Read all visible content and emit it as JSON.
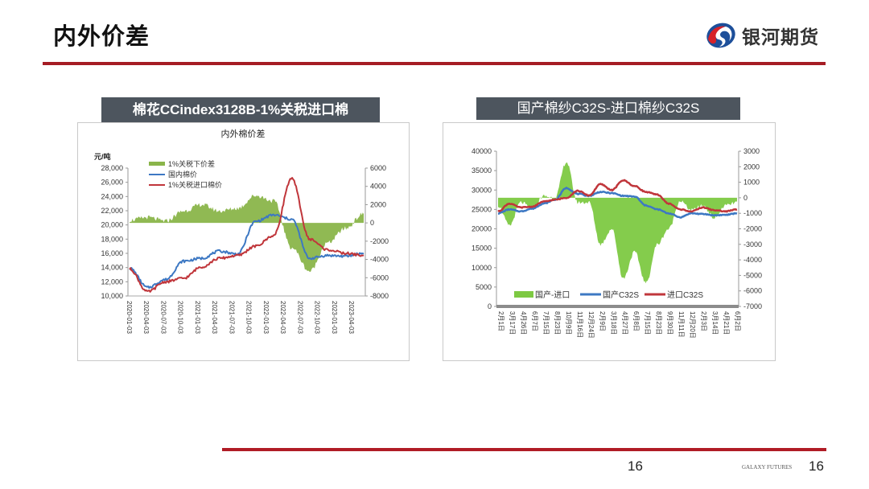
{
  "page": {
    "title": "内外价差",
    "logo_text": "银河期货",
    "page_number": "16",
    "footer_brand": "GALAXY FUTURES",
    "footer_page_number": "16",
    "accent_color": "#a51c24"
  },
  "left_chart": {
    "header": "棉花CCindex3128B-1%关税进口棉",
    "title": "内外棉价差",
    "y_left_unit": "元/吨",
    "y_left_ticks": [
      "28,000",
      "26,000",
      "24,000",
      "22,000",
      "20,000",
      "18,000",
      "16,000",
      "14,000",
      "12,000",
      "10,000"
    ],
    "y_right_ticks": [
      "6000",
      "4000",
      "2000",
      "0",
      "-2000",
      "-4000",
      "-6000",
      "-8000"
    ],
    "x_ticks": [
      "2020-01-03",
      "2020-04-03",
      "2020-07-03",
      "2020-10-03",
      "2021-01-03",
      "2021-04-03",
      "2021-07-03",
      "2021-10-03",
      "2022-01-03",
      "2022-04-03",
      "2022-07-03",
      "2022-10-03",
      "2023-01-03",
      "2023-04-03"
    ],
    "legend": [
      "1%关税下价差",
      "国内棉价",
      "1%关税进口棉价"
    ]
  },
  "right_chart": {
    "header": "国产棉纱C32S-进口棉纱C32S",
    "y_left_ticks": [
      "40000",
      "35000",
      "30000",
      "25000",
      "20000",
      "15000",
      "10000",
      "5000",
      "0"
    ],
    "y_right_ticks": [
      "3000",
      "2000",
      "1000",
      "0",
      "-1000",
      "-2000",
      "-3000",
      "-4000",
      "-5000",
      "-6000",
      "-7000"
    ],
    "x_ticks": [
      "2月1日",
      "3月17日",
      "4月26日",
      "6月7日",
      "7月15日",
      "8月23日",
      "10月9日",
      "11月16日",
      "12月24日",
      "2月9日",
      "3月18日",
      "4月27日",
      "6月8日",
      "7月15日",
      "8月23日",
      "9月30日",
      "11月11日",
      "12月20日",
      "2月3日",
      "3月14日",
      "4月21日",
      "6月2日"
    ],
    "legend": [
      "国产-进口",
      "国产C32S",
      "进口C32S"
    ]
  },
  "chart_data": [
    {
      "type": "line",
      "title": "内外棉价差",
      "xlabel": "",
      "ylabel": "元/吨",
      "ylim": [
        10000,
        28000
      ],
      "y2lim": [
        -8000,
        6000
      ],
      "x": [
        "2020-01-03",
        "2020-04-03",
        "2020-07-03",
        "2020-10-03",
        "2021-01-03",
        "2021-04-03",
        "2021-07-03",
        "2021-10-03",
        "2022-01-03",
        "2022-04-03",
        "2022-07-03",
        "2022-10-03",
        "2023-01-03",
        "2023-04-03"
      ],
      "series": [
        {
          "name": "国内棉价",
          "axis": "left",
          "color": "#3d78c3",
          "values": [
            13900,
            11200,
            12300,
            14900,
            15300,
            16300,
            15900,
            20500,
            21400,
            20800,
            15300,
            15700,
            15600,
            16000
          ]
        },
        {
          "name": "1%关税进口棉价",
          "axis": "left",
          "color": "#c0363b",
          "values": [
            13800,
            10600,
            12000,
            12500,
            14100,
            15300,
            15700,
            17000,
            18500,
            26500,
            18000,
            16500,
            16000,
            15700
          ]
        },
        {
          "name": "1%关税下价差",
          "axis": "right",
          "type": "area",
          "color": "#8ab54a",
          "values": [
            300,
            600,
            200,
            1300,
            2000,
            1300,
            1600,
            3000,
            2400,
            -2700,
            -5300,
            -2200,
            -600,
            1000
          ]
        }
      ],
      "legend_position": "top-left",
      "grid": false
    },
    {
      "type": "line",
      "title": "国产棉纱C32S-进口棉纱C32S",
      "xlabel": "",
      "ylabel": "",
      "ylim": [
        0,
        40000
      ],
      "y2lim": [
        -7000,
        3000
      ],
      "x": [
        "2月1日",
        "3月17日",
        "4月26日",
        "6月7日",
        "7月15日",
        "8月23日",
        "10月9日",
        "11月16日",
        "12月24日",
        "2月9日",
        "3月18日",
        "4月27日",
        "6月8日",
        "7月15日",
        "8月23日",
        "9月30日",
        "11月11日",
        "12月20日",
        "2月3日",
        "3月14日",
        "4月21日",
        "6月2日"
      ],
      "series": [
        {
          "name": "国产C32S",
          "axis": "left",
          "color": "#3d78c3",
          "values": [
            24000,
            25000,
            24500,
            25200,
            26500,
            27500,
            30500,
            29000,
            28500,
            29500,
            29200,
            28500,
            28300,
            26000,
            25000,
            24000,
            23000,
            24000,
            23800,
            23500,
            23600,
            24000
          ]
        },
        {
          "name": "进口C32S",
          "axis": "left",
          "color": "#c0363b",
          "values": [
            24500,
            26500,
            25500,
            25700,
            27000,
            27500,
            28000,
            29800,
            28600,
            31500,
            30000,
            32500,
            31000,
            29500,
            28800,
            26500,
            25000,
            24500,
            25500,
            24800,
            24500,
            25000
          ]
        },
        {
          "name": "国产-进口",
          "axis": "right",
          "type": "area",
          "color": "#7dc942",
          "values": [
            -500,
            -1800,
            -300,
            -700,
            100,
            0,
            2300,
            -300,
            -300,
            -3000,
            -2000,
            -5200,
            -3500,
            -5500,
            -3000,
            -2000,
            -200,
            -800,
            -500,
            -1300,
            -500,
            -300
          ]
        }
      ],
      "legend_position": "bottom",
      "grid": false
    }
  ]
}
